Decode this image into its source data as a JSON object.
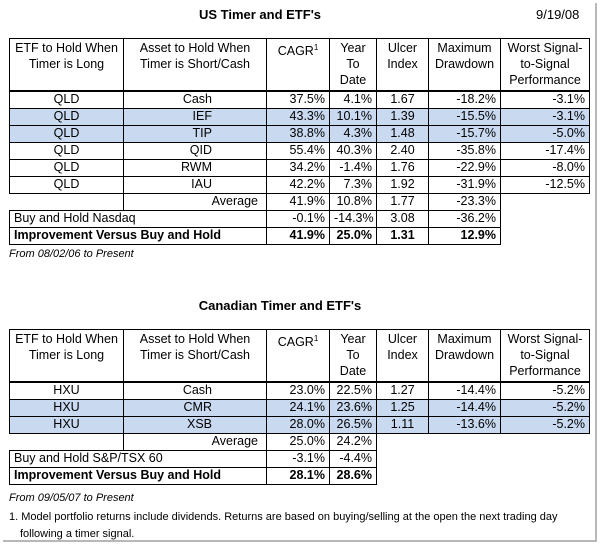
{
  "us": {
    "title": "US Timer and ETF's",
    "date": "9/19/08",
    "headers": [
      "ETF to Hold When Timer is Long",
      "Asset to Hold When Timer is Short/Cash",
      "CAGR",
      "Year To Date",
      "Ulcer Index",
      "Maximum Drawdown",
      "Worst Signal-to-Signal Performance"
    ],
    "cagr_sup": "1",
    "rows": [
      {
        "etf": "QLD",
        "asset": "Cash",
        "cagr": "37.5%",
        "ytd": "4.1%",
        "ulcer": "1.67",
        "dd": "-18.2%",
        "worst": "-3.1%"
      },
      {
        "etf": "QLD",
        "asset": "IEF",
        "cagr": "43.3%",
        "ytd": "10.1%",
        "ulcer": "1.39",
        "dd": "-15.5%",
        "worst": "-3.1%"
      },
      {
        "etf": "QLD",
        "asset": "TIP",
        "cagr": "38.8%",
        "ytd": "4.3%",
        "ulcer": "1.48",
        "dd": "-15.7%",
        "worst": "-5.0%"
      },
      {
        "etf": "QLD",
        "asset": "QID",
        "cagr": "55.4%",
        "ytd": "40.3%",
        "ulcer": "2.40",
        "dd": "-35.8%",
        "worst": "-17.4%"
      },
      {
        "etf": "QLD",
        "asset": "RWM",
        "cagr": "34.2%",
        "ytd": "-1.4%",
        "ulcer": "1.76",
        "dd": "-22.9%",
        "worst": "-8.0%"
      },
      {
        "etf": "QLD",
        "asset": "IAU",
        "cagr": "42.2%",
        "ytd": "7.3%",
        "ulcer": "1.92",
        "dd": "-31.9%",
        "worst": "-12.5%"
      }
    ],
    "average": {
      "label": "Average",
      "cagr": "41.9%",
      "ytd": "10.8%",
      "ulcer": "1.77",
      "dd": "-23.3%"
    },
    "bh": {
      "label": "Buy and Hold Nasdaq",
      "cagr": "-0.1%",
      "ytd": "-14.3%",
      "ulcer": "3.08",
      "dd": "-36.2%"
    },
    "imp": {
      "label": "Improvement Versus Buy and Hold",
      "cagr": "41.9%",
      "ytd": "25.0%",
      "ulcer": "1.31",
      "dd": "12.9%"
    },
    "note": "From 08/02/06 to Present"
  },
  "ca": {
    "title": "Canadian Timer and ETF's",
    "headers": [
      "ETF to Hold When Timer is Long",
      "Asset to Hold When Timer is Short/Cash",
      "CAGR",
      "Year To Date",
      "Ulcer Index",
      "Maximum Drawdown",
      "Worst Signal-to-Signal Performance"
    ],
    "cagr_sup": "1",
    "rows": [
      {
        "etf": "HXU",
        "asset": "Cash",
        "cagr": "23.0%",
        "ytd": "22.5%",
        "ulcer": "1.27",
        "dd": "-14.4%",
        "worst": "-5.2%"
      },
      {
        "etf": "HXU",
        "asset": "CMR",
        "cagr": "24.1%",
        "ytd": "23.6%",
        "ulcer": "1.25",
        "dd": "-14.4%",
        "worst": "-5.2%"
      },
      {
        "etf": "HXU",
        "asset": "XSB",
        "cagr": "28.0%",
        "ytd": "26.5%",
        "ulcer": "1.11",
        "dd": "-13.6%",
        "worst": "-5.2%"
      }
    ],
    "average": {
      "label": "Average",
      "cagr": "25.0%",
      "ytd": "24.2%"
    },
    "bh": {
      "label": "Buy and Hold S&P/TSX 60",
      "cagr": "-3.1%",
      "ytd": "-4.4%"
    },
    "imp": {
      "label": "Improvement Versus Buy and Hold",
      "cagr": "28.1%",
      "ytd": "28.6%"
    },
    "note": "From 09/05/07 to Present"
  },
  "footnote": {
    "line1": "1. Model portfolio returns include dividends. Returns are based on buying/selling at the open the next trading day",
    "line2": "following a timer signal."
  }
}
